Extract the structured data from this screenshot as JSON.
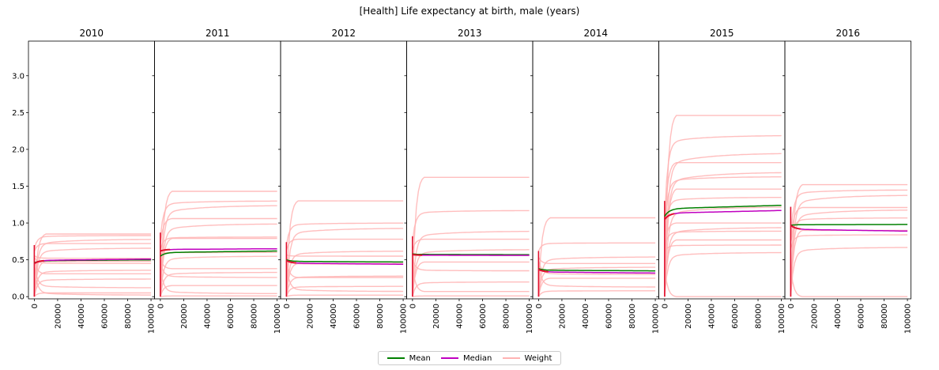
{
  "chart_data": {
    "type": "line",
    "title": "[Health] Life expectancy at birth, male (years)",
    "y_ticks": [
      "0.0",
      "0.5",
      "1.0",
      "1.5",
      "2.0",
      "2.5",
      "3.0"
    ],
    "x_ticks": [
      "0",
      "20000",
      "40000",
      "60000",
      "80000",
      "100000"
    ],
    "ylim": [
      -0.03,
      3.47
    ],
    "xlim": [
      -5000,
      103000
    ],
    "legend": {
      "placement": "bottom-center",
      "entries": [
        {
          "name": "Mean",
          "color": "#008000"
        },
        {
          "name": "Median",
          "color": "#c000c0"
        },
        {
          "name": "Weight",
          "color": "#ffb3b3"
        }
      ]
    },
    "panels": [
      {
        "title": "2010",
        "mean": [
          0.46,
          0.5
        ],
        "median": [
          0.45,
          0.51
        ],
        "weights": [
          0.85,
          0.83,
          0.78,
          0.72,
          0.66,
          0.52,
          0.48,
          0.45,
          0.36,
          0.31,
          0.24,
          0.12,
          0.05,
          0.02
        ]
      },
      {
        "title": "2011",
        "mean": [
          0.55,
          0.62
        ],
        "median": [
          0.62,
          0.65
        ],
        "weights": [
          1.43,
          1.3,
          1.24,
          1.06,
          0.99,
          0.81,
          0.79,
          0.6,
          0.55,
          0.38,
          0.33,
          0.26,
          0.15,
          0.04,
          0.01
        ]
      },
      {
        "title": "2012",
        "mean": [
          0.5,
          0.47
        ],
        "median": [
          0.49,
          0.44
        ],
        "weights": [
          1.3,
          1.0,
          0.93,
          0.78,
          0.62,
          0.55,
          0.45,
          0.44,
          0.28,
          0.26,
          0.14,
          0.07,
          0.02
        ]
      },
      {
        "title": "2013",
        "mean": [
          0.58,
          0.57
        ],
        "median": [
          0.57,
          0.56
        ],
        "weights": [
          1.62,
          1.17,
          0.89,
          0.78,
          0.64,
          0.56,
          0.47,
          0.35,
          0.2,
          0.07,
          0.01
        ]
      },
      {
        "title": "2014",
        "mean": [
          0.38,
          0.35
        ],
        "median": [
          0.37,
          0.32
        ],
        "weights": [
          1.07,
          0.73,
          0.54,
          0.45,
          0.4,
          0.3,
          0.25,
          0.13,
          0.08
        ]
      },
      {
        "title": "2015",
        "mean": [
          1.09,
          1.24
        ],
        "median": [
          1.05,
          1.17
        ],
        "weights": [
          2.46,
          2.19,
          1.95,
          1.82,
          1.69,
          1.63,
          1.46,
          1.35,
          1.22,
          1.0,
          0.94,
          0.89,
          0.77,
          0.7,
          0.6,
          0.0
        ]
      },
      {
        "title": "2016",
        "mean": [
          0.97,
          0.98
        ],
        "median": [
          0.97,
          0.89
        ],
        "weights": [
          1.52,
          1.45,
          1.38,
          1.21,
          1.18,
          1.07,
          0.9,
          0.84,
          0.67,
          0.0
        ]
      }
    ]
  }
}
